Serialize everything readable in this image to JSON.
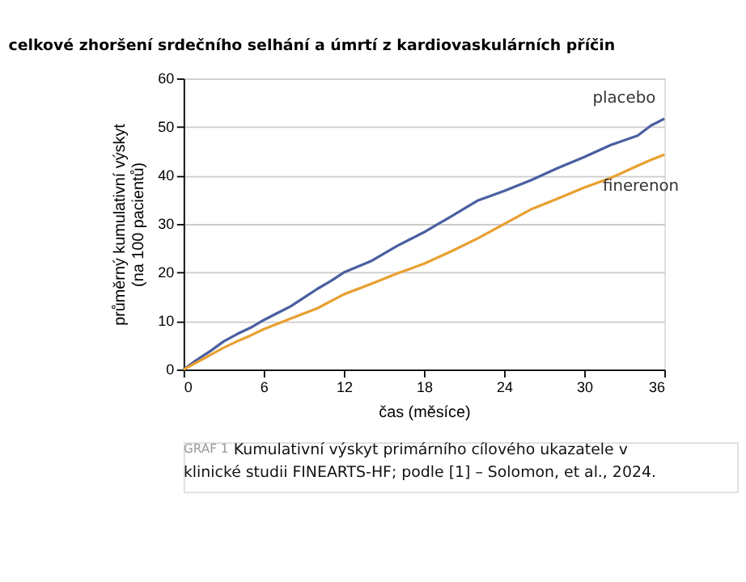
{
  "chart_data": {
    "type": "line",
    "title": "celkové zhoršení srdečního selhání a úmrtí z kardiovaskulárních příčin",
    "xlabel": "čas (měsíce)",
    "ylabel": "průměrný kumulativní výskyt\n(na 100 pacientů)",
    "xlim": [
      0,
      36
    ],
    "xticks": [
      0,
      6,
      12,
      18,
      24,
      30,
      36
    ],
    "ylim": [
      0,
      60
    ],
    "yticks": [
      0,
      10,
      20,
      30,
      40,
      50,
      60
    ],
    "grid": "y",
    "line_style": "solid",
    "marker": "none",
    "series": [
      {
        "name": "placebo",
        "color": "#4a5fa0",
        "x": [
          0,
          1,
          2,
          3,
          4,
          5,
          6,
          7,
          8,
          9,
          10,
          11,
          12,
          14,
          16,
          18,
          19,
          20,
          22,
          24,
          26,
          28,
          30,
          32,
          34,
          35,
          36
        ],
        "values": [
          0,
          2,
          3.8,
          5.8,
          7.3,
          8.6,
          10.2,
          11.6,
          13,
          14.8,
          16.6,
          18.2,
          20,
          22.3,
          25.5,
          28.3,
          29.9,
          31.5,
          34.8,
          36.8,
          39,
          41.5,
          43.8,
          46.3,
          48.2,
          50.3,
          51.7
        ]
      },
      {
        "name": "finerenon",
        "color": "#e8a030",
        "x": [
          0,
          1,
          2,
          3,
          4,
          5,
          6,
          8,
          10,
          12,
          14,
          16,
          18,
          20,
          22,
          24,
          26,
          28,
          30,
          32,
          34,
          35,
          36
        ],
        "values": [
          0,
          1.5,
          3,
          4.5,
          5.8,
          7,
          8.3,
          10.5,
          12.6,
          15.5,
          17.6,
          19.8,
          21.8,
          24.3,
          27,
          30,
          33,
          35.2,
          37.5,
          39.5,
          42,
          43.2,
          44.3
        ]
      }
    ],
    "annotations": [
      "GRAF 1",
      "Kumulativní výskyt primárního cílového ukazatele v klinické studii FINEARTS-HF; podle [1] – Solomon, et al., 2024."
    ]
  }
}
